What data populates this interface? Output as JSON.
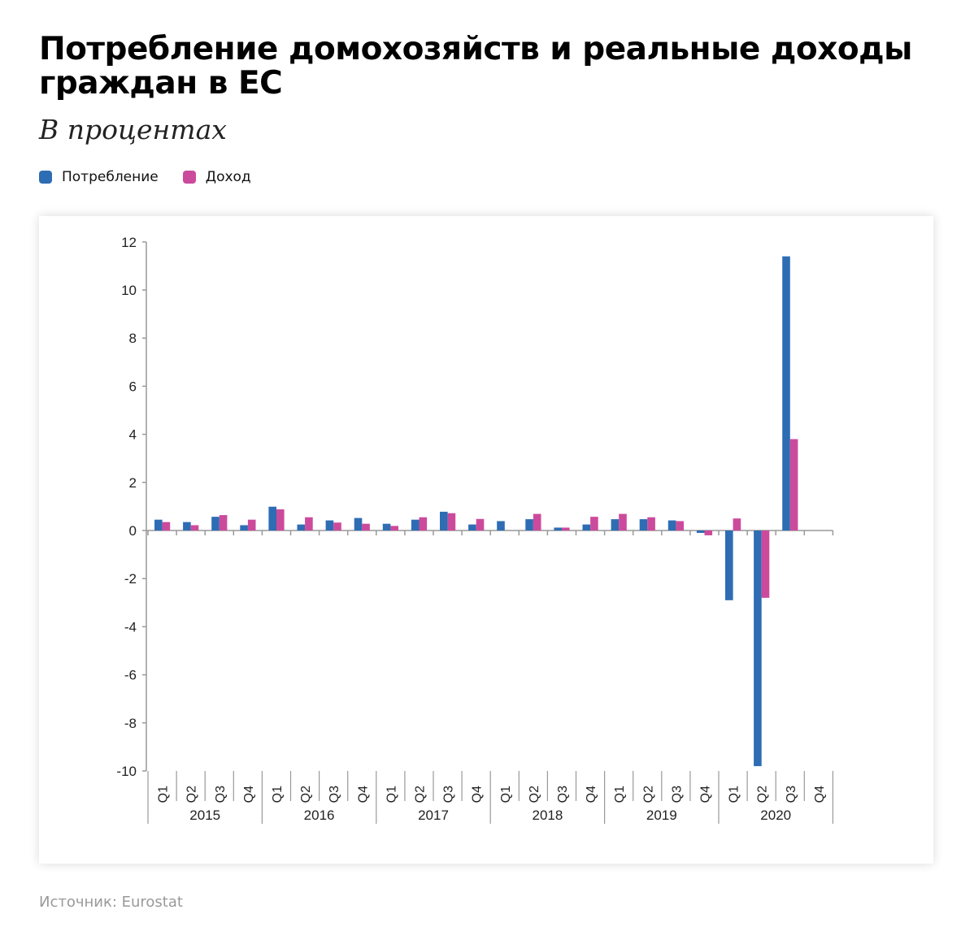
{
  "title": "Потребление домохозяйств и реальные доходы граждан в ЕС",
  "subtitle": "В процентах",
  "source": "Источник: Eurostat",
  "colors": {
    "consumption": "#2e6db4",
    "income": "#cc4a9c"
  },
  "chart_data": {
    "type": "bar",
    "legend_position": "top-left",
    "grid": false,
    "ylim": [
      -10,
      12
    ],
    "yticks": [
      12,
      10,
      8,
      6,
      4,
      2,
      0,
      -2,
      -4,
      -6,
      -8,
      -10
    ],
    "years": [
      "2015",
      "2016",
      "2017",
      "2018",
      "2019",
      "2020"
    ],
    "quarters": [
      "Q1",
      "Q2",
      "Q3",
      "Q4"
    ],
    "series": [
      {
        "name": "Потребление",
        "values": [
          0.45,
          0.35,
          0.57,
          0.22,
          0.99,
          0.25,
          0.42,
          0.52,
          0.28,
          0.45,
          0.78,
          0.25,
          0.39,
          0.47,
          0.12,
          0.25,
          0.47,
          0.47,
          0.42,
          -0.1,
          -2.9,
          -9.8,
          11.4,
          null
        ]
      },
      {
        "name": "Доход",
        "values": [
          0.35,
          0.22,
          0.64,
          0.45,
          0.88,
          0.55,
          0.33,
          0.28,
          0.19,
          0.55,
          0.72,
          0.48,
          0,
          0.69,
          0.12,
          0.57,
          0.69,
          0.55,
          0.39,
          -0.2,
          0.5,
          -2.8,
          3.8,
          null
        ]
      }
    ]
  }
}
